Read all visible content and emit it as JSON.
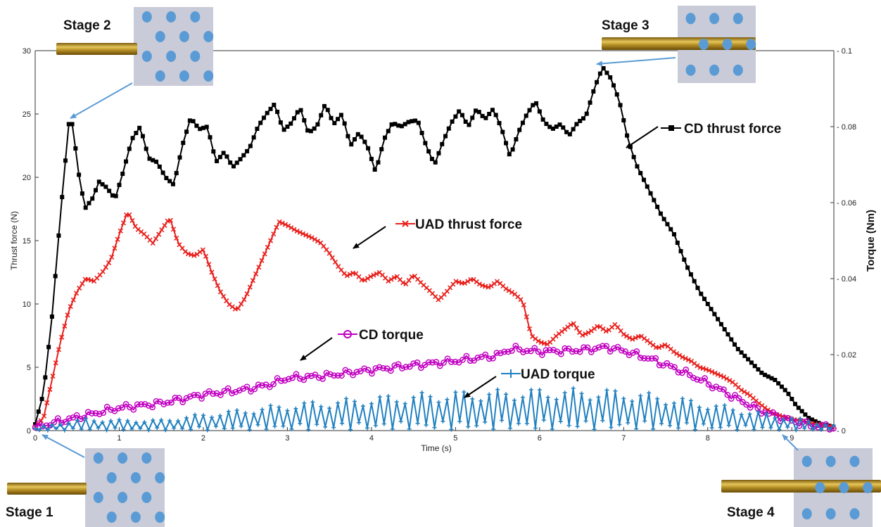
{
  "chart_data": {
    "type": "line",
    "xlabel": "Time (s)",
    "ylabel_left": "Thrust force (N)",
    "ylabel_right": "Torque (Nm)",
    "xlim": [
      0,
      9.5
    ],
    "ylim_left": [
      0,
      30
    ],
    "ylim_right": [
      0,
      0.1
    ],
    "x_ticks": [
      0,
      1,
      2,
      3,
      4,
      5,
      6,
      7,
      8,
      9
    ],
    "y_left_ticks": [
      0,
      5,
      10,
      15,
      20,
      25,
      30
    ],
    "y_right_ticks": [
      "0",
      "0.02",
      "0.04",
      "0.06",
      "0.08",
      "0.1"
    ],
    "grid": false,
    "series": [
      {
        "name": "CD  thrust force",
        "axis": "left",
        "color": "#000000",
        "marker": "square",
        "points": [
          [
            0,
            0.5
          ],
          [
            0.1,
            3
          ],
          [
            0.2,
            9
          ],
          [
            0.3,
            17
          ],
          [
            0.4,
            24.2
          ],
          [
            0.45,
            24.2
          ],
          [
            0.5,
            21
          ],
          [
            0.55,
            19
          ],
          [
            0.6,
            17.6
          ],
          [
            0.7,
            18.5
          ],
          [
            0.75,
            19.7
          ],
          [
            0.85,
            19.2
          ],
          [
            0.95,
            18.3
          ],
          [
            1.05,
            20.5
          ],
          [
            1.15,
            23
          ],
          [
            1.25,
            24
          ],
          [
            1.35,
            21.5
          ],
          [
            1.45,
            21.2
          ],
          [
            1.55,
            20
          ],
          [
            1.65,
            19.4
          ],
          [
            1.75,
            22.5
          ],
          [
            1.85,
            24.7
          ],
          [
            1.95,
            23.8
          ],
          [
            2.05,
            24
          ],
          [
            2.15,
            21.2
          ],
          [
            2.25,
            22
          ],
          [
            2.35,
            20.8
          ],
          [
            2.45,
            21.5
          ],
          [
            2.55,
            22.3
          ],
          [
            2.65,
            24
          ],
          [
            2.75,
            25
          ],
          [
            2.85,
            25.8
          ],
          [
            2.95,
            23.7
          ],
          [
            3.05,
            24.3
          ],
          [
            3.15,
            25.5
          ],
          [
            3.25,
            23.5
          ],
          [
            3.35,
            24
          ],
          [
            3.45,
            25.8
          ],
          [
            3.55,
            24.2
          ],
          [
            3.65,
            25
          ],
          [
            3.75,
            22.5
          ],
          [
            3.85,
            23.5
          ],
          [
            3.95,
            22.5
          ],
          [
            4.05,
            20.4
          ],
          [
            4.15,
            23
          ],
          [
            4.25,
            24.3
          ],
          [
            4.35,
            24
          ],
          [
            4.45,
            24.4
          ],
          [
            4.55,
            24.5
          ],
          [
            4.65,
            22.5
          ],
          [
            4.75,
            21
          ],
          [
            4.85,
            22.8
          ],
          [
            4.95,
            24.3
          ],
          [
            5.05,
            25.3
          ],
          [
            5.15,
            24
          ],
          [
            5.25,
            25.4
          ],
          [
            5.35,
            24.6
          ],
          [
            5.45,
            25.4
          ],
          [
            5.55,
            23.8
          ],
          [
            5.65,
            21.6
          ],
          [
            5.75,
            23.6
          ],
          [
            5.85,
            25
          ],
          [
            5.95,
            26
          ],
          [
            6.05,
            24.4
          ],
          [
            6.15,
            23.8
          ],
          [
            6.25,
            24.2
          ],
          [
            6.35,
            23.3
          ],
          [
            6.45,
            24.3
          ],
          [
            6.55,
            24.8
          ],
          [
            6.65,
            27
          ],
          [
            6.75,
            28.7
          ],
          [
            6.85,
            27.8
          ],
          [
            6.95,
            26
          ],
          [
            7.05,
            23
          ],
          [
            7.15,
            21
          ],
          [
            7.3,
            19
          ],
          [
            7.45,
            17
          ],
          [
            7.6,
            15.5
          ],
          [
            7.75,
            13
          ],
          [
            7.9,
            11
          ],
          [
            8.05,
            9.5
          ],
          [
            8.2,
            8
          ],
          [
            8.35,
            6.5
          ],
          [
            8.5,
            5.5
          ],
          [
            8.65,
            4.5
          ],
          [
            8.8,
            4
          ],
          [
            8.95,
            3
          ],
          [
            9.05,
            2
          ],
          [
            9.2,
            1
          ],
          [
            9.35,
            0.5
          ],
          [
            9.5,
            0.3
          ]
        ]
      },
      {
        "name": "UAD thrust force",
        "axis": "left",
        "color": "#e8201c",
        "marker": "x",
        "points": [
          [
            0,
            0.3
          ],
          [
            0.1,
            1
          ],
          [
            0.2,
            4
          ],
          [
            0.3,
            7
          ],
          [
            0.4,
            9.5
          ],
          [
            0.5,
            11
          ],
          [
            0.6,
            12
          ],
          [
            0.7,
            11.8
          ],
          [
            0.8,
            12.5
          ],
          [
            0.9,
            13.5
          ],
          [
            1.0,
            15.5
          ],
          [
            1.1,
            17.3
          ],
          [
            1.2,
            16
          ],
          [
            1.3,
            15.5
          ],
          [
            1.4,
            14.8
          ],
          [
            1.5,
            15.8
          ],
          [
            1.6,
            16.8
          ],
          [
            1.7,
            14.8
          ],
          [
            1.8,
            14
          ],
          [
            1.9,
            13.8
          ],
          [
            2.0,
            14.3
          ],
          [
            2.1,
            12.5
          ],
          [
            2.2,
            11
          ],
          [
            2.3,
            10
          ],
          [
            2.4,
            9.5
          ],
          [
            2.5,
            10.5
          ],
          [
            2.6,
            12
          ],
          [
            2.7,
            13.5
          ],
          [
            2.8,
            15
          ],
          [
            2.9,
            16.5
          ],
          [
            3.0,
            16.2
          ],
          [
            3.1,
            15.8
          ],
          [
            3.2,
            15.5
          ],
          [
            3.3,
            15.2
          ],
          [
            3.4,
            14.8
          ],
          [
            3.5,
            14
          ],
          [
            3.6,
            13
          ],
          [
            3.7,
            12.2
          ],
          [
            3.8,
            12.5
          ],
          [
            3.9,
            11.8
          ],
          [
            4.0,
            12.2
          ],
          [
            4.1,
            12.5
          ],
          [
            4.2,
            11.8
          ],
          [
            4.3,
            12.2
          ],
          [
            4.4,
            11.5
          ],
          [
            4.5,
            12.3
          ],
          [
            4.6,
            11.6
          ],
          [
            4.7,
            11
          ],
          [
            4.8,
            10.3
          ],
          [
            4.9,
            11
          ],
          [
            5.0,
            11.8
          ],
          [
            5.1,
            11.6
          ],
          [
            5.2,
            12
          ],
          [
            5.3,
            11.5
          ],
          [
            5.4,
            11.3
          ],
          [
            5.5,
            11.8
          ],
          [
            5.6,
            11.2
          ],
          [
            5.7,
            10.8
          ],
          [
            5.8,
            10.2
          ],
          [
            5.9,
            7.5
          ],
          [
            6.0,
            7
          ],
          [
            6.1,
            6.8
          ],
          [
            6.2,
            7.5
          ],
          [
            6.3,
            8
          ],
          [
            6.4,
            8.5
          ],
          [
            6.5,
            7.5
          ],
          [
            6.6,
            7.8
          ],
          [
            6.7,
            8.3
          ],
          [
            6.8,
            7.8
          ],
          [
            6.9,
            8.4
          ],
          [
            7.0,
            7.6
          ],
          [
            7.1,
            7.2
          ],
          [
            7.2,
            7.5
          ],
          [
            7.3,
            7
          ],
          [
            7.4,
            6.5
          ],
          [
            7.5,
            6.8
          ],
          [
            7.6,
            6.2
          ],
          [
            7.7,
            5.8
          ],
          [
            7.8,
            5.5
          ],
          [
            7.9,
            5
          ],
          [
            8.0,
            4.8
          ],
          [
            8.1,
            4.5
          ],
          [
            8.2,
            4.2
          ],
          [
            8.3,
            3.8
          ],
          [
            8.4,
            3.2
          ],
          [
            8.5,
            2.8
          ],
          [
            8.6,
            2.2
          ],
          [
            8.7,
            1.7
          ],
          [
            8.8,
            1.3
          ],
          [
            8.9,
            1.1
          ],
          [
            9.0,
            0.9
          ],
          [
            9.1,
            0.8
          ],
          [
            9.2,
            0.6
          ],
          [
            9.3,
            0.5
          ],
          [
            9.4,
            0.4
          ],
          [
            9.5,
            0.3
          ]
        ]
      },
      {
        "name": "CD torque",
        "axis": "right",
        "color": "#c000c0",
        "marker": "circle",
        "points": [
          [
            0,
            0.0008
          ],
          [
            0.3,
            0.0025
          ],
          [
            0.6,
            0.004
          ],
          [
            1.0,
            0.006
          ],
          [
            1.5,
            0.0072
          ],
          [
            2.0,
            0.0095
          ],
          [
            2.5,
            0.0108
          ],
          [
            2.8,
            0.0122
          ],
          [
            3.0,
            0.0138
          ],
          [
            3.5,
            0.0145
          ],
          [
            4.0,
            0.016
          ],
          [
            4.5,
            0.0172
          ],
          [
            5.0,
            0.0183
          ],
          [
            5.5,
            0.0198
          ],
          [
            5.65,
            0.0215
          ],
          [
            6.0,
            0.0208
          ],
          [
            6.5,
            0.0212
          ],
          [
            6.8,
            0.022
          ],
          [
            7.0,
            0.021
          ],
          [
            7.3,
            0.019
          ],
          [
            7.6,
            0.0165
          ],
          [
            8.0,
            0.0125
          ],
          [
            8.3,
            0.009
          ],
          [
            8.6,
            0.0055
          ],
          [
            9.0,
            0.0025
          ],
          [
            9.3,
            0.0012
          ],
          [
            9.5,
            0.0008
          ]
        ]
      },
      {
        "name": "UAD torque",
        "axis": "right",
        "color": "#2080c0",
        "marker": "plus",
        "points": [
          [
            0,
            0.0004
          ],
          [
            0.3,
            0.0012
          ],
          [
            0.6,
            0.0018
          ],
          [
            1.0,
            0.0016
          ],
          [
            1.5,
            0.0016
          ],
          [
            2.0,
            0.0025
          ],
          [
            2.5,
            0.0032
          ],
          [
            3.0,
            0.004
          ],
          [
            3.5,
            0.0045
          ],
          [
            4.0,
            0.005
          ],
          [
            4.5,
            0.0055
          ],
          [
            5.0,
            0.0058
          ],
          [
            5.5,
            0.006
          ],
          [
            6.0,
            0.0062
          ],
          [
            6.5,
            0.0062
          ],
          [
            7.0,
            0.006
          ],
          [
            7.5,
            0.0052
          ],
          [
            8.0,
            0.0042
          ],
          [
            8.5,
            0.003
          ],
          [
            9.0,
            0.002
          ],
          [
            9.5,
            0.0008
          ]
        ]
      }
    ],
    "legend_labels": [
      {
        "key": "cd_thrust",
        "text": "CD  thrust force"
      },
      {
        "key": "uad_thrust",
        "text": "UAD thrust force"
      },
      {
        "key": "cd_torque",
        "text": "CD torque"
      },
      {
        "key": "uad_torque",
        "text": "UAD torque"
      }
    ],
    "stages": [
      {
        "key": "stage1",
        "text": "Stage 1",
        "time": 0.05
      },
      {
        "key": "stage2",
        "text": "Stage 2",
        "time": 0.42
      },
      {
        "key": "stage3",
        "text": "Stage 3",
        "time": 6.75
      },
      {
        "key": "stage4",
        "text": "Stage 4",
        "time": 9.2
      }
    ],
    "annotation_colors": {
      "stage_arrow": "#5b9bd5",
      "hole": "#5b9bd5",
      "workpiece": "#c9cbd8",
      "drill": "#b8941e"
    }
  }
}
